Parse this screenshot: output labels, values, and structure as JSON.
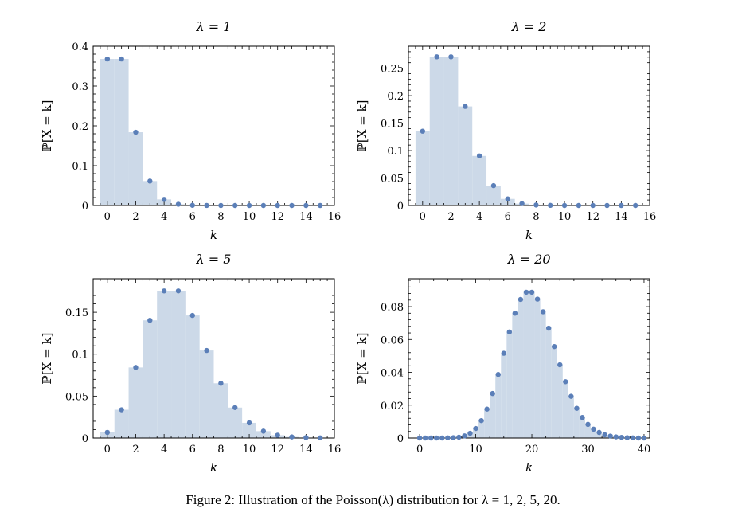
{
  "figure": {
    "caption": "Figure 2: Illustration of the Poisson(λ) distribution for λ = 1, 2, 5, 20.",
    "colors": {
      "bar_fill": "#ccd9e8",
      "point": "#5b7fb8",
      "frame": "#000000"
    }
  },
  "chart_data": [
    {
      "type": "bar",
      "title": "λ = 1",
      "xlabel": "k",
      "ylabel": "ℙ[X = k]",
      "xlim": [
        -1,
        16
      ],
      "ylim": [
        0,
        0.4
      ],
      "xticks": [
        0,
        2,
        4,
        6,
        8,
        10,
        12,
        14,
        16
      ],
      "yticks": [
        0,
        0.1,
        0.2,
        0.3,
        0.4
      ],
      "ytick_labels": [
        "0",
        "0.1",
        "0.2",
        "0.3",
        "0.4"
      ],
      "x": [
        0,
        1,
        2,
        3,
        4,
        5,
        6,
        7,
        8,
        9,
        10,
        11,
        12,
        13,
        14,
        15
      ],
      "values": [
        0.3679,
        0.3679,
        0.1839,
        0.0613,
        0.0153,
        0.0031,
        0.0005,
        0.0001,
        0,
        0,
        0,
        0,
        0,
        0,
        0,
        0
      ]
    },
    {
      "type": "bar",
      "title": "λ = 2",
      "xlabel": "k",
      "ylabel": "ℙ[X = k]",
      "xlim": [
        -1,
        16
      ],
      "ylim": [
        0,
        0.29
      ],
      "xticks": [
        0,
        2,
        4,
        6,
        8,
        10,
        12,
        14,
        16
      ],
      "yticks": [
        0,
        0.05,
        0.1,
        0.15,
        0.2,
        0.25
      ],
      "ytick_labels": [
        "0",
        "0.05",
        "0.1",
        "0.15",
        "0.2",
        "0.25"
      ],
      "x": [
        0,
        1,
        2,
        3,
        4,
        5,
        6,
        7,
        8,
        9,
        10,
        11,
        12,
        13,
        14,
        15
      ],
      "values": [
        0.1353,
        0.2707,
        0.2707,
        0.1804,
        0.0902,
        0.0361,
        0.012,
        0.0034,
        0.0009,
        0.0002,
        0,
        0,
        0,
        0,
        0,
        0
      ]
    },
    {
      "type": "bar",
      "title": "λ = 5",
      "xlabel": "k",
      "ylabel": "ℙ[X = k]",
      "xlim": [
        -1,
        16
      ],
      "ylim": [
        0,
        0.19
      ],
      "xticks": [
        0,
        2,
        4,
        6,
        8,
        10,
        12,
        14,
        16
      ],
      "yticks": [
        0,
        0.05,
        0.1,
        0.15
      ],
      "ytick_labels": [
        "0",
        "0.05",
        "0.1",
        "0.15"
      ],
      "x": [
        0,
        1,
        2,
        3,
        4,
        5,
        6,
        7,
        8,
        9,
        10,
        11,
        12,
        13,
        14,
        15
      ],
      "values": [
        0.0067,
        0.0337,
        0.0842,
        0.1404,
        0.1755,
        0.1755,
        0.1462,
        0.1044,
        0.0653,
        0.0363,
        0.0181,
        0.0082,
        0.0034,
        0.0013,
        0.0005,
        0.0002
      ]
    },
    {
      "type": "bar",
      "title": "λ = 20",
      "xlabel": "k",
      "ylabel": "ℙ[X = k]",
      "xlim": [
        -2,
        41
      ],
      "ylim": [
        0,
        0.097
      ],
      "xticks": [
        0,
        10,
        20,
        30,
        40
      ],
      "yticks": [
        0,
        0.02,
        0.04,
        0.06,
        0.08
      ],
      "ytick_labels": [
        "0",
        "0.02",
        "0.04",
        "0.06",
        "0.08"
      ],
      "x": [
        0,
        1,
        2,
        3,
        4,
        5,
        6,
        7,
        8,
        9,
        10,
        11,
        12,
        13,
        14,
        15,
        16,
        17,
        18,
        19,
        20,
        21,
        22,
        23,
        24,
        25,
        26,
        27,
        28,
        29,
        30,
        31,
        32,
        33,
        34,
        35,
        36,
        37,
        38,
        39,
        40
      ],
      "values": [
        0,
        0,
        0,
        0,
        0,
        0.0001,
        0.0002,
        0.0005,
        0.0013,
        0.0029,
        0.0058,
        0.0106,
        0.0176,
        0.0271,
        0.0387,
        0.0516,
        0.0646,
        0.076,
        0.0844,
        0.0888,
        0.0888,
        0.0846,
        0.0769,
        0.0669,
        0.0557,
        0.0446,
        0.0343,
        0.0254,
        0.0181,
        0.0125,
        0.0083,
        0.0054,
        0.0034,
        0.002,
        0.0012,
        0.0007,
        0.0004,
        0.0002,
        0.0001,
        0,
        0
      ]
    }
  ]
}
